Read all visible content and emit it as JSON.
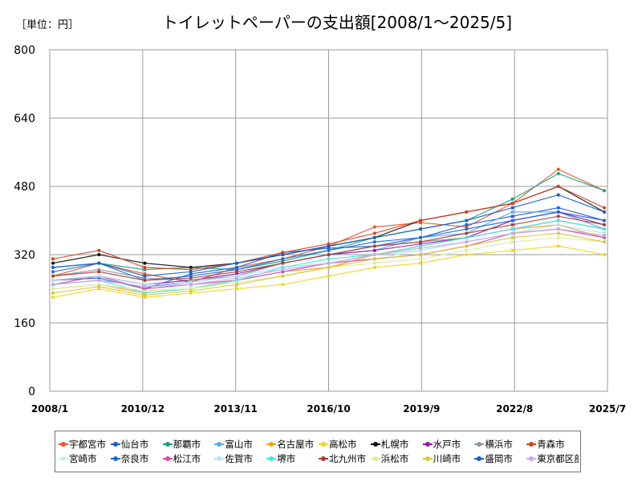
{
  "unit_label": "［単位：円］",
  "title": "トイレットペーパーの支出額[2008/1～2025/5]",
  "chart_data": {
    "type": "line",
    "title": "トイレットペーパーの支出額[2008/1～2025/5]",
    "unit": "［単位：円］",
    "xlabel": "",
    "ylabel": "",
    "x_range": [
      "2008/1",
      "2025/7"
    ],
    "ylim": [
      0,
      800
    ],
    "y_ticks": [
      0,
      160,
      320,
      480,
      640,
      800
    ],
    "x_ticks": [
      "2008/1",
      "2010/12",
      "2013/11",
      "2016/10",
      "2019/9",
      "2022/8",
      "2025/7"
    ],
    "grid": true,
    "legend_position": "bottom",
    "series": [
      {
        "name": "宇都宮市",
        "color": "#e8552a",
        "values": [
          270,
          300,
          275,
          255,
          290,
          310,
          340,
          385,
          395,
          385,
          440,
          520,
          470
        ]
      },
      {
        "name": "仙台市",
        "color": "#1f5bd6",
        "values": [
          260,
          265,
          240,
          275,
          290,
          325,
          335,
          340,
          360,
          390,
          410,
          430,
          400
        ]
      },
      {
        "name": "那覇市",
        "color": "#16a37a",
        "values": [
          290,
          300,
          285,
          290,
          285,
          305,
          330,
          360,
          380,
          400,
          450,
          510,
          470
        ]
      },
      {
        "name": "富山市",
        "color": "#5aa8e6",
        "values": [
          250,
          260,
          245,
          255,
          270,
          300,
          320,
          330,
          360,
          370,
          420,
          420,
          380
        ]
      },
      {
        "name": "名古屋市",
        "color": "#f0a020",
        "values": [
          240,
          250,
          230,
          240,
          260,
          280,
          290,
          320,
          340,
          360,
          380,
          390,
          360
        ]
      },
      {
        "name": "高松市",
        "color": "#f2d51e",
        "values": [
          220,
          240,
          220,
          230,
          240,
          250,
          270,
          290,
          300,
          320,
          330,
          340,
          320
        ]
      },
      {
        "name": "札幌市",
        "color": "#111111",
        "values": [
          300,
          320,
          300,
          290,
          300,
          320,
          340,
          360,
          400,
          420,
          440,
          480,
          420
        ]
      },
      {
        "name": "水戸市",
        "color": "#8a1aa8",
        "values": [
          260,
          270,
          250,
          260,
          275,
          300,
          320,
          330,
          345,
          360,
          400,
          420,
          390
        ]
      },
      {
        "name": "横浜市",
        "color": "#8a96a3",
        "values": [
          270,
          285,
          265,
          260,
          270,
          300,
          320,
          340,
          350,
          360,
          380,
          400,
          380
        ]
      },
      {
        "name": "青森市",
        "color": "#d9401f",
        "values": [
          310,
          330,
          290,
          285,
          300,
          325,
          345,
          370,
          400,
          420,
          440,
          480,
          430
        ]
      },
      {
        "name": "宮崎市",
        "color": "#c6f0e6",
        "values": [
          240,
          250,
          235,
          245,
          260,
          280,
          300,
          310,
          330,
          350,
          370,
          380,
          360
        ]
      },
      {
        "name": "奈良市",
        "color": "#1d6ad8",
        "values": [
          280,
          300,
          260,
          270,
          285,
          310,
          330,
          350,
          360,
          380,
          400,
          420,
          400
        ]
      },
      {
        "name": "松江市",
        "color": "#d64aa0",
        "values": [
          250,
          270,
          240,
          250,
          260,
          280,
          300,
          310,
          320,
          340,
          370,
          380,
          360
        ]
      },
      {
        "name": "佐賀市",
        "color": "#b8e0ee",
        "values": [
          260,
          270,
          250,
          255,
          270,
          290,
          300,
          320,
          330,
          350,
          370,
          390,
          370
        ]
      },
      {
        "name": "堺市",
        "color": "#40e8e0",
        "values": [
          250,
          260,
          230,
          240,
          260,
          290,
          310,
          320,
          340,
          360,
          380,
          400,
          380
        ]
      },
      {
        "name": "北九州市",
        "color": "#b03a3a",
        "values": [
          270,
          280,
          260,
          265,
          280,
          300,
          320,
          340,
          350,
          370,
          390,
          410,
          390
        ]
      },
      {
        "name": "浜松市",
        "color": "#d8ee9a",
        "values": [
          240,
          250,
          235,
          240,
          255,
          270,
          290,
          300,
          310,
          330,
          350,
          360,
          350
        ]
      },
      {
        "name": "川崎市",
        "color": "#d8c83a",
        "values": [
          230,
          245,
          225,
          235,
          250,
          270,
          290,
          310,
          320,
          340,
          360,
          370,
          350
        ]
      },
      {
        "name": "盛岡市",
        "color": "#1560c8",
        "values": [
          290,
          300,
          270,
          280,
          300,
          320,
          340,
          360,
          380,
          400,
          430,
          460,
          420
        ]
      },
      {
        "name": "東京都区部",
        "color": "#c9a6e8",
        "values": [
          250,
          260,
          245,
          250,
          265,
          285,
          300,
          320,
          335,
          350,
          370,
          380,
          365
        ]
      }
    ]
  }
}
